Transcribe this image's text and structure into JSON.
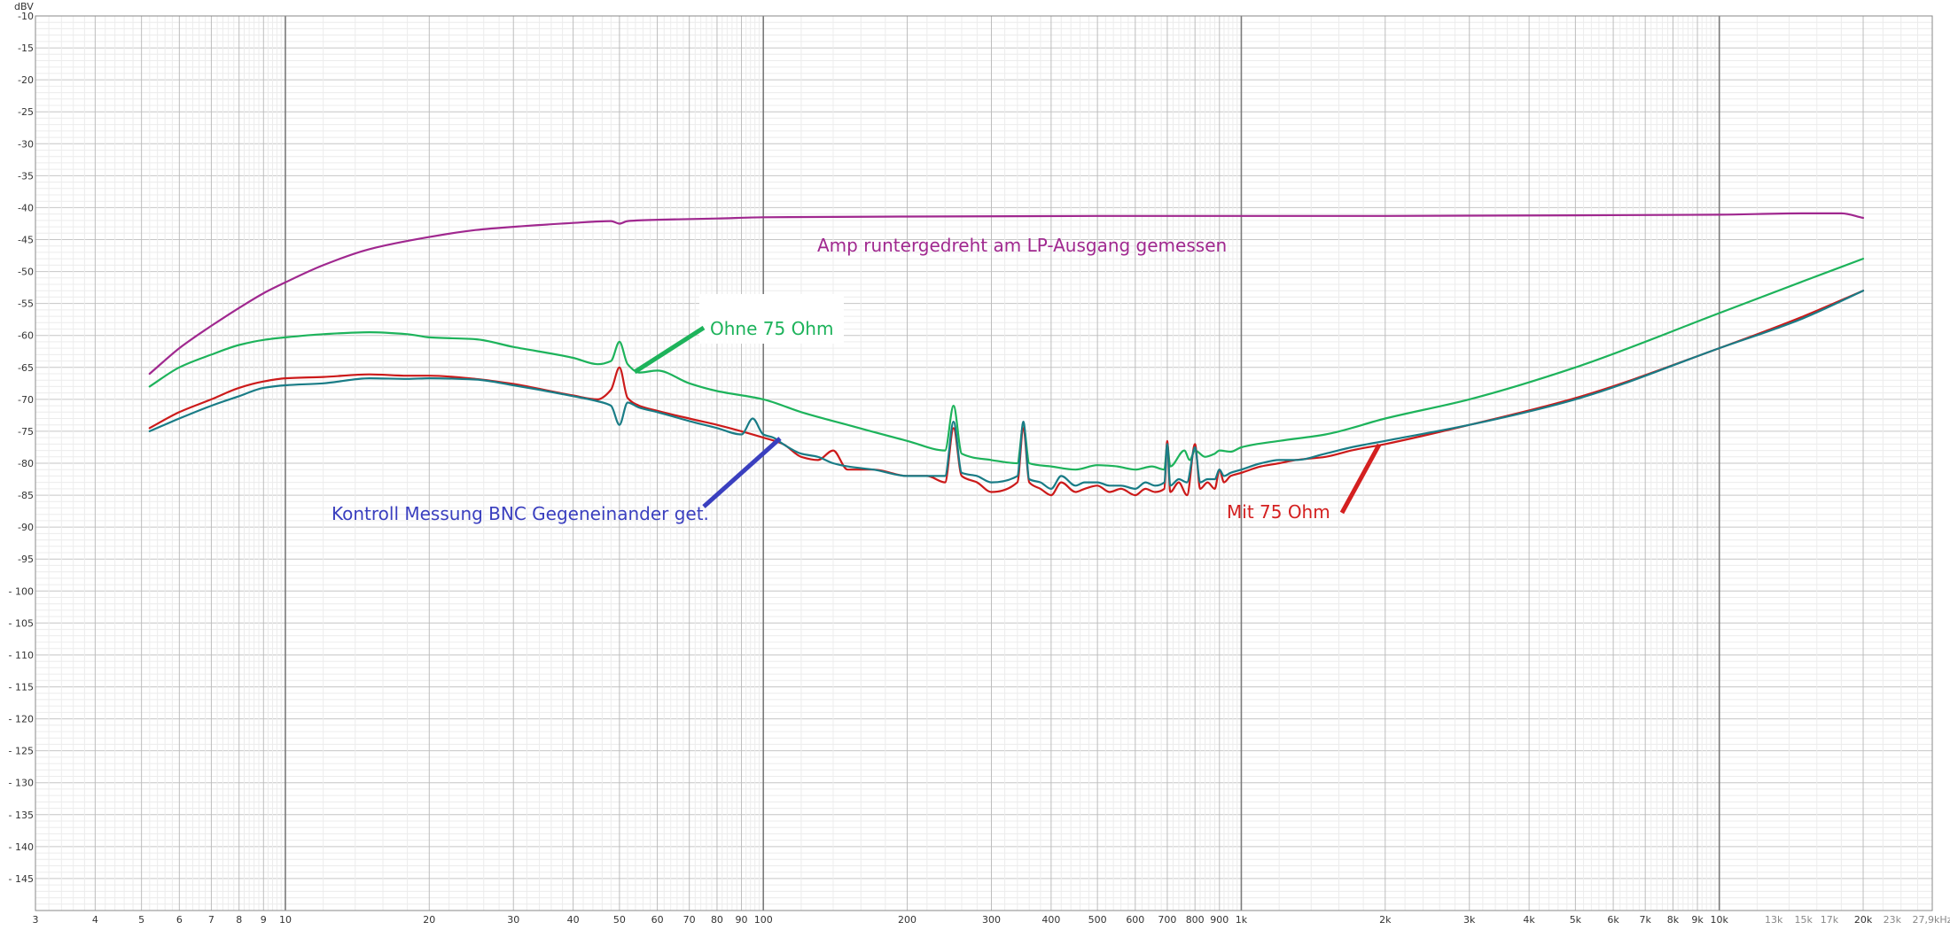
{
  "chart_data": {
    "type": "line",
    "ylabel": "dBV",
    "xscale": "log",
    "xlim": [
      3,
      27900
    ],
    "ylim": [
      -150,
      -10
    ],
    "grid": true,
    "y_ticks": [
      -10,
      -15,
      -20,
      -25,
      -30,
      -35,
      -40,
      -45,
      -50,
      -55,
      -60,
      -65,
      -70,
      -75,
      -80,
      -85,
      -90,
      -95,
      -100,
      -105,
      -110,
      -115,
      -120,
      -125,
      -130,
      -135,
      -140,
      -145
    ],
    "y_tick_labels": [
      "-10",
      "-15",
      "-20",
      "-25",
      "-30",
      "-35",
      "-40",
      "-45",
      "-50",
      "-55",
      "-60",
      "-65",
      "-70",
      "-75",
      "-80",
      "-85",
      "-90",
      "-95",
      "- 100",
      "- 105",
      "- 110",
      "- 115",
      "- 120",
      "- 125",
      "- 130",
      "- 135",
      "- 140",
      "- 145"
    ],
    "x_ticks": [
      {
        "v": 3,
        "label": "3"
      },
      {
        "v": 4,
        "label": "4"
      },
      {
        "v": 5,
        "label": "5"
      },
      {
        "v": 6,
        "label": "6"
      },
      {
        "v": 7,
        "label": "7"
      },
      {
        "v": 8,
        "label": "8"
      },
      {
        "v": 9,
        "label": "9"
      },
      {
        "v": 10,
        "label": "10"
      },
      {
        "v": 20,
        "label": "20"
      },
      {
        "v": 30,
        "label": "30"
      },
      {
        "v": 40,
        "label": "40"
      },
      {
        "v": 50,
        "label": "50"
      },
      {
        "v": 60,
        "label": "60"
      },
      {
        "v": 70,
        "label": "70"
      },
      {
        "v": 80,
        "label": "80"
      },
      {
        "v": 90,
        "label": "90"
      },
      {
        "v": 100,
        "label": "100"
      },
      {
        "v": 200,
        "label": "200"
      },
      {
        "v": 300,
        "label": "300"
      },
      {
        "v": 400,
        "label": "400"
      },
      {
        "v": 500,
        "label": "500"
      },
      {
        "v": 600,
        "label": "600"
      },
      {
        "v": 700,
        "label": "700"
      },
      {
        "v": 800,
        "label": "800"
      },
      {
        "v": 900,
        "label": "900"
      },
      {
        "v": 1000,
        "label": "1k"
      },
      {
        "v": 2000,
        "label": "2k"
      },
      {
        "v": 3000,
        "label": "3k"
      },
      {
        "v": 4000,
        "label": "4k"
      },
      {
        "v": 5000,
        "label": "5k"
      },
      {
        "v": 6000,
        "label": "6k"
      },
      {
        "v": 7000,
        "label": "7k"
      },
      {
        "v": 8000,
        "label": "8k"
      },
      {
        "v": 9000,
        "label": "9k"
      },
      {
        "v": 10000,
        "label": "10k"
      },
      {
        "v": 13000,
        "label": "13k"
      },
      {
        "v": 15000,
        "label": "15k"
      },
      {
        "v": 17000,
        "label": "17k"
      },
      {
        "v": 20000,
        "label": "20k"
      },
      {
        "v": 23000,
        "label": "23k"
      },
      {
        "v": 27900,
        "label": "27,9kHz"
      }
    ],
    "series": [
      {
        "color": "#a0288f",
        "x": [
          5.2,
          6,
          7,
          8,
          9,
          10,
          12,
          15,
          20,
          25,
          30,
          40,
          48,
          50,
          52,
          60,
          80,
          100,
          200,
          500,
          1000,
          2000,
          5000,
          10000,
          15000,
          18000,
          20000
        ],
        "y": [
          -66,
          -62,
          -58.5,
          -55.7,
          -53.4,
          -51.7,
          -49,
          -46.5,
          -44.6,
          -43.5,
          -43,
          -42.4,
          -42.1,
          -42.5,
          -42.1,
          -41.9,
          -41.7,
          -41.5,
          -41.4,
          -41.3,
          -41.3,
          -41.3,
          -41.2,
          -41.1,
          -40.9,
          -40.9,
          -41.6
        ]
      },
      {
        "color": "#1db35b",
        "x": [
          5.2,
          6,
          7,
          8,
          9,
          10,
          12,
          15,
          18,
          20,
          25,
          30,
          40,
          45,
          48,
          50,
          52,
          55,
          60,
          70,
          80,
          100,
          120,
          150,
          200,
          240,
          250,
          260,
          300,
          340,
          350,
          360,
          400,
          450,
          500,
          550,
          600,
          650,
          690,
          700,
          710,
          760,
          780,
          800,
          840,
          880,
          900,
          950,
          1000,
          1200,
          1500,
          2000,
          3000,
          5000,
          10000,
          15000,
          20000
        ],
        "y": [
          -68,
          -65,
          -63,
          -61.5,
          -60.7,
          -60.3,
          -59.8,
          -59.5,
          -59.8,
          -60.3,
          -60.6,
          -61.8,
          -63.5,
          -64.5,
          -64,
          -61,
          -64.5,
          -65.8,
          -65.5,
          -67.5,
          -68.7,
          -70,
          -72,
          -74,
          -76.5,
          -78,
          -71,
          -78.5,
          -79.5,
          -80,
          -74,
          -80,
          -80.5,
          -81,
          -80.3,
          -80.5,
          -81,
          -80.5,
          -81,
          -77,
          -80.5,
          -78,
          -79.5,
          -78,
          -79,
          -78.5,
          -78,
          -78.2,
          -77.5,
          -76.5,
          -75.5,
          -73,
          -70,
          -65,
          -56.5,
          -51.5,
          -48
        ]
      },
      {
        "color": "#cc1a1a",
        "x": [
          5.2,
          6,
          7,
          8,
          9,
          10,
          12,
          15,
          18,
          20,
          25,
          30,
          40,
          45,
          48,
          50,
          52,
          55,
          60,
          70,
          80,
          90,
          100,
          110,
          120,
          130,
          140,
          150,
          170,
          200,
          220,
          240,
          250,
          260,
          280,
          300,
          340,
          350,
          360,
          380,
          400,
          420,
          450,
          470,
          500,
          530,
          560,
          600,
          630,
          660,
          690,
          700,
          710,
          740,
          770,
          800,
          820,
          850,
          880,
          900,
          920,
          950,
          1000,
          1100,
          1200,
          1300,
          1500,
          1700,
          2000,
          3000,
          5000,
          10000,
          15000,
          20000
        ],
        "y": [
          -74.5,
          -72,
          -70,
          -68.2,
          -67.2,
          -66.7,
          -66.5,
          -66.1,
          -66.3,
          -66.3,
          -66.8,
          -67.6,
          -69.4,
          -70,
          -68.5,
          -65,
          -69.8,
          -71,
          -71.8,
          -73,
          -74,
          -75,
          -76,
          -77,
          -79,
          -79.5,
          -78,
          -81,
          -81,
          -82,
          -82,
          -83,
          -74.5,
          -82,
          -83,
          -84.5,
          -83,
          -74.5,
          -83,
          -84,
          -85,
          -83,
          -84.5,
          -84,
          -83.5,
          -84.5,
          -84,
          -85,
          -84,
          -84.5,
          -84,
          -76.5,
          -84.5,
          -83,
          -85,
          -77,
          -84,
          -83,
          -84,
          -81,
          -83,
          -82,
          -81.5,
          -80.5,
          -80,
          -79.5,
          -79,
          -78,
          -77,
          -74,
          -69.8,
          -62,
          -57,
          -53
        ]
      },
      {
        "color": "#197c86",
        "x": [
          5.2,
          6,
          7,
          8,
          9,
          10,
          12,
          15,
          18,
          20,
          25,
          30,
          40,
          45,
          48,
          50,
          52,
          55,
          60,
          70,
          80,
          90,
          95,
          100,
          105,
          110,
          120,
          130,
          140,
          150,
          170,
          200,
          220,
          240,
          250,
          260,
          280,
          300,
          340,
          350,
          360,
          380,
          400,
          420,
          450,
          470,
          500,
          530,
          560,
          600,
          630,
          660,
          690,
          700,
          710,
          740,
          770,
          800,
          820,
          850,
          880,
          900,
          920,
          950,
          1000,
          1100,
          1200,
          1300,
          1500,
          1700,
          2000,
          3000,
          5000,
          10000,
          15000,
          20000
        ],
        "y": [
          -75,
          -73,
          -71,
          -69.5,
          -68.2,
          -67.8,
          -67.5,
          -66.7,
          -66.8,
          -66.7,
          -66.9,
          -67.8,
          -69.5,
          -70.3,
          -71,
          -74,
          -70.5,
          -71.3,
          -72,
          -73.4,
          -74.5,
          -75.5,
          -73,
          -75.5,
          -76,
          -77,
          -78.5,
          -79,
          -80,
          -80.5,
          -81,
          -82,
          -82,
          -82,
          -73.5,
          -81.5,
          -82,
          -83,
          -82,
          -73.5,
          -82.5,
          -83,
          -84,
          -82,
          -83.5,
          -83,
          -83,
          -83.5,
          -83.5,
          -84,
          -83,
          -83.5,
          -83,
          -77,
          -83.5,
          -82.5,
          -83,
          -77.5,
          -83,
          -82.5,
          -82.5,
          -81,
          -82,
          -81.5,
          -81,
          -80,
          -79.5,
          -79.5,
          -78.5,
          -77.5,
          -76.5,
          -74,
          -70,
          -62,
          -57.3,
          -53
        ]
      }
    ],
    "annotations": [
      {
        "text": "Amp runtergedreht am LP-Ausgang gemessen",
        "color": "#a0288f"
      },
      {
        "text": "Ohne 75 Ohm",
        "color": "#1db35b"
      },
      {
        "text": "Kontroll Messung BNC Gegeneinander get.",
        "color": "#3a3fbf"
      },
      {
        "text": "Mit 75 Ohm",
        "color": "#d42020"
      }
    ]
  }
}
